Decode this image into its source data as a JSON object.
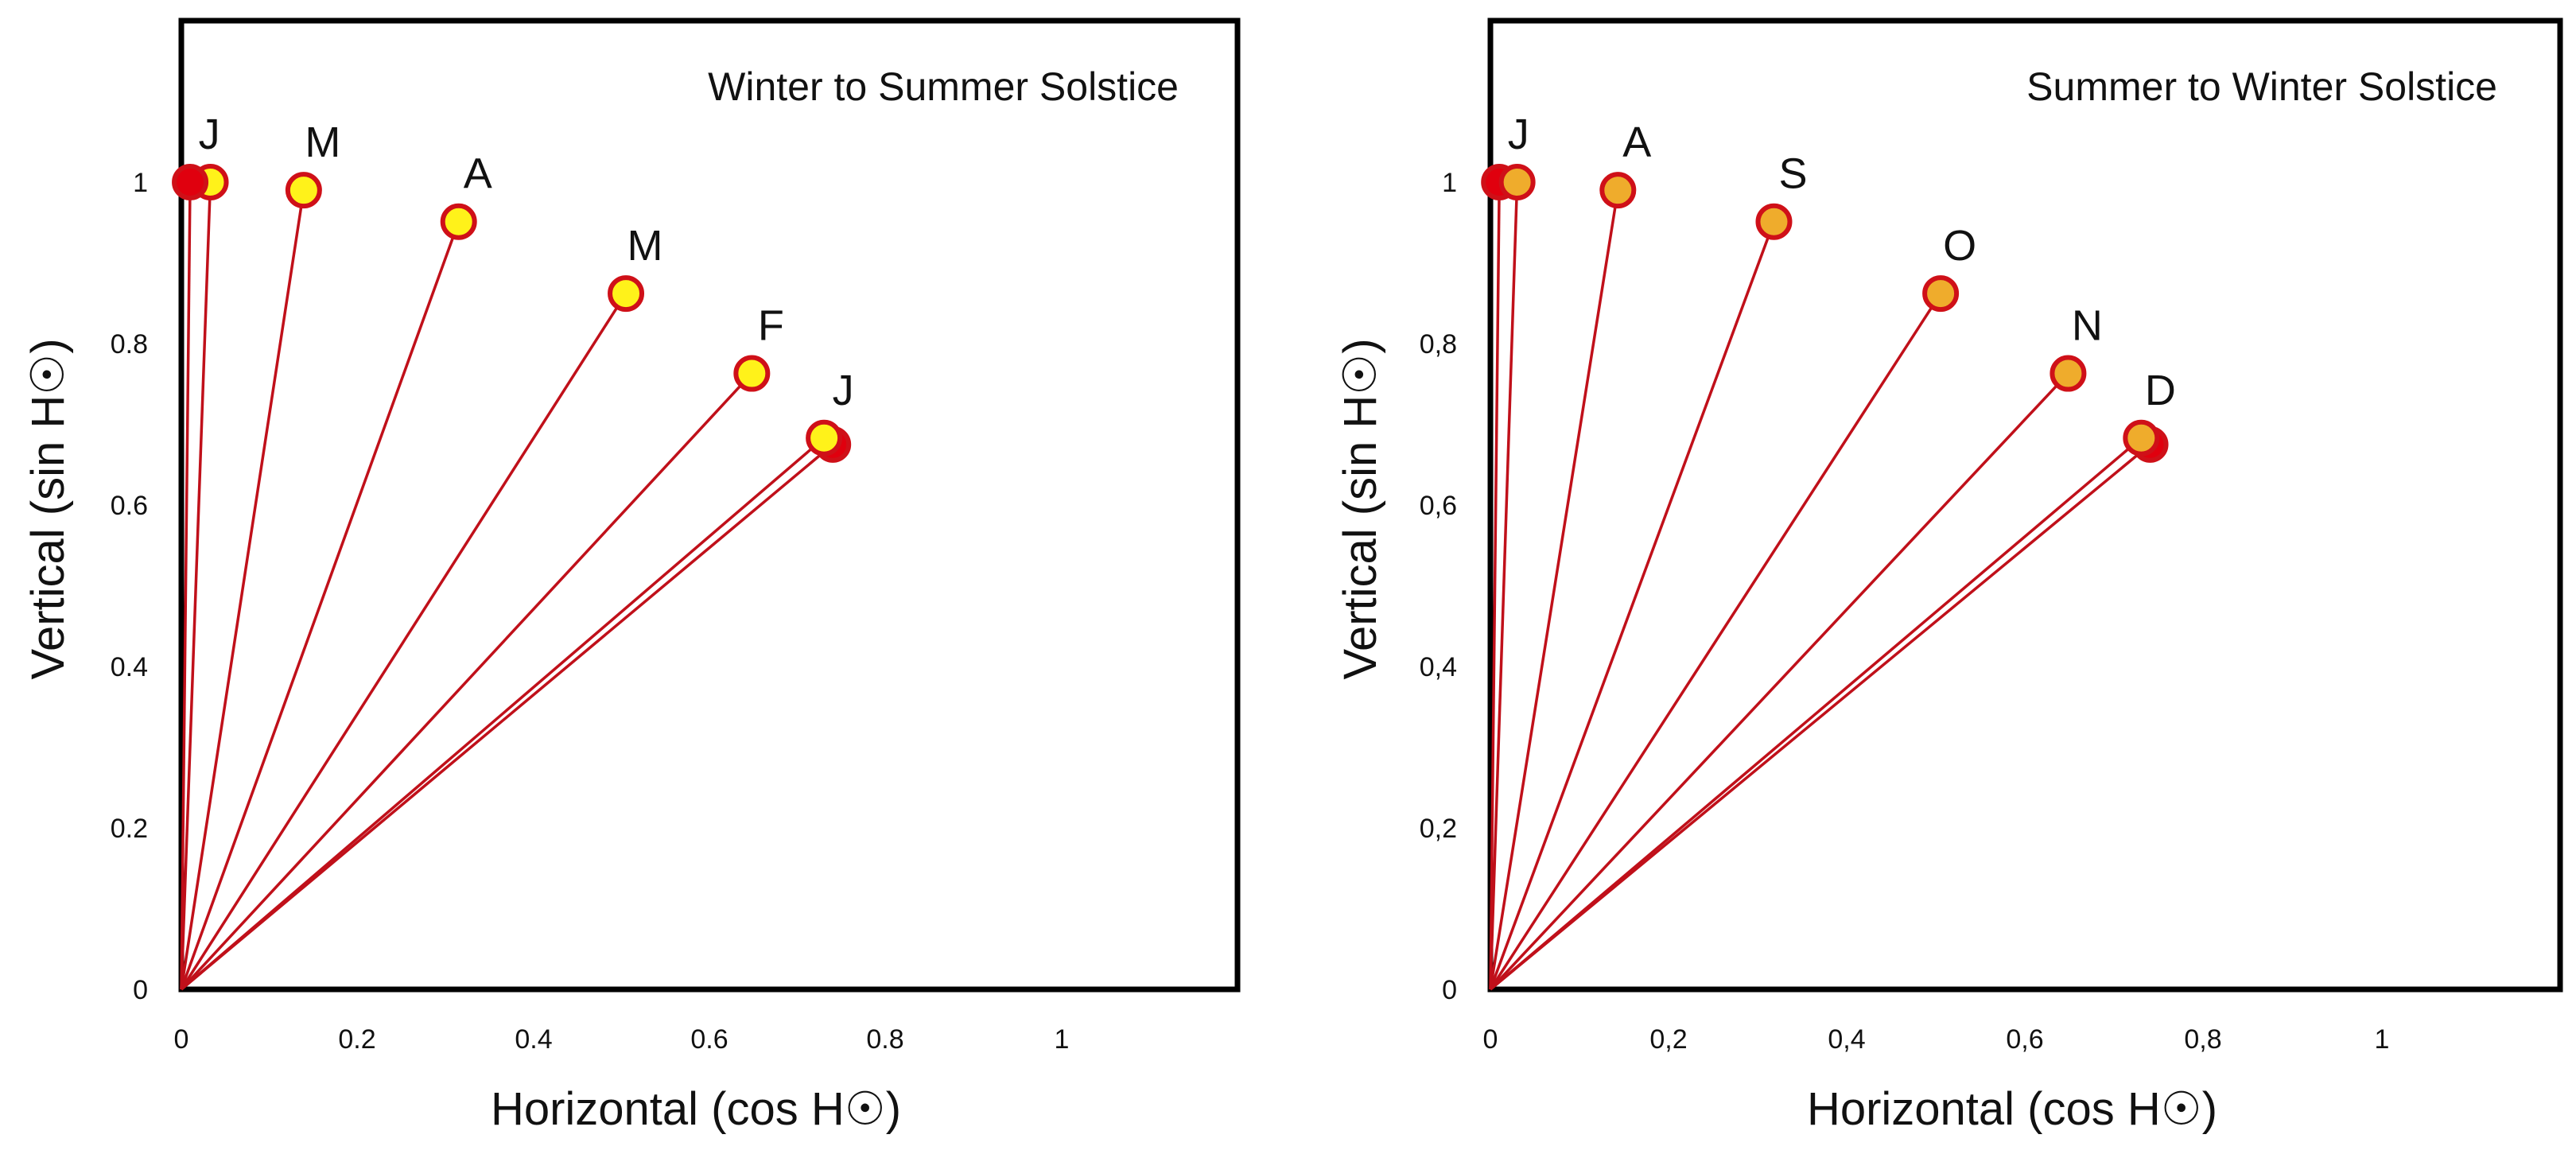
{
  "colors": {
    "ray": "#c0101a",
    "marker_stroke": "#cf1018",
    "solid_marker": "#e0000e",
    "panel1_marker_fill": "#fff21a",
    "panel2_marker_fill": "#efac2c"
  },
  "chart_data": [
    {
      "type": "scatter",
      "title": "Winter to Summer Solstice",
      "xlabel": "Horizontal (cos H☉)",
      "ylabel": "Vertical (sin H☉)",
      "xlim": [
        0,
        1.2
      ],
      "ylim": [
        0,
        1.2
      ],
      "x_ticks": [
        "0",
        "0.2",
        "0.4",
        "0.6",
        "0.8",
        "1"
      ],
      "y_ticks": [
        "0",
        "0.2",
        "0.4",
        "0.6",
        "0.8",
        "1"
      ],
      "grid": false,
      "marker_fill_key": "panel1_marker_fill",
      "points": [
        {
          "label": "J",
          "x": 0.74,
          "y": 0.675,
          "solid": true,
          "show_label": false
        },
        {
          "label": "J",
          "x": 0.73,
          "y": 0.683,
          "solid": false,
          "show_label": true
        },
        {
          "label": "F",
          "x": 0.648,
          "y": 0.763,
          "solid": false,
          "show_label": true
        },
        {
          "label": "M",
          "x": 0.505,
          "y": 0.862,
          "solid": false,
          "show_label": true
        },
        {
          "label": "A",
          "x": 0.315,
          "y": 0.951,
          "solid": false,
          "show_label": true
        },
        {
          "label": "M",
          "x": 0.139,
          "y": 0.99,
          "solid": false,
          "show_label": true
        },
        {
          "label": "J",
          "x": 0.033,
          "y": 1.0,
          "solid": false,
          "show_label": false
        },
        {
          "label": "J",
          "x": 0.01,
          "y": 1.0,
          "solid": true,
          "show_label": true
        }
      ]
    },
    {
      "type": "scatter",
      "title": "Summer to Winter Solstice",
      "xlabel": "Horizontal (cos H☉)",
      "ylabel": "Vertical (sin H☉)",
      "xlim": [
        0,
        1.2
      ],
      "ylim": [
        0,
        1.2
      ],
      "x_ticks": [
        "0",
        "0,2",
        "0,4",
        "0,6",
        "0,8",
        "1"
      ],
      "y_ticks": [
        "0",
        "0,2",
        "0,4",
        "0,6",
        "0,8",
        "1"
      ],
      "grid": false,
      "marker_fill_key": "panel2_marker_fill",
      "points": [
        {
          "label": "J",
          "x": 0.01,
          "y": 1.0,
          "solid": true,
          "show_label": true
        },
        {
          "label": "J",
          "x": 0.03,
          "y": 1.0,
          "solid": false,
          "show_label": false
        },
        {
          "label": "A",
          "x": 0.143,
          "y": 0.99,
          "solid": false,
          "show_label": true
        },
        {
          "label": "S",
          "x": 0.318,
          "y": 0.951,
          "solid": false,
          "show_label": true
        },
        {
          "label": "O",
          "x": 0.505,
          "y": 0.862,
          "solid": false,
          "show_label": true
        },
        {
          "label": "N",
          "x": 0.648,
          "y": 0.763,
          "solid": false,
          "show_label": true
        },
        {
          "label": "D",
          "x": 0.74,
          "y": 0.675,
          "solid": true,
          "show_label": false
        },
        {
          "label": "D",
          "x": 0.73,
          "y": 0.683,
          "solid": false,
          "show_label": true
        }
      ]
    }
  ]
}
